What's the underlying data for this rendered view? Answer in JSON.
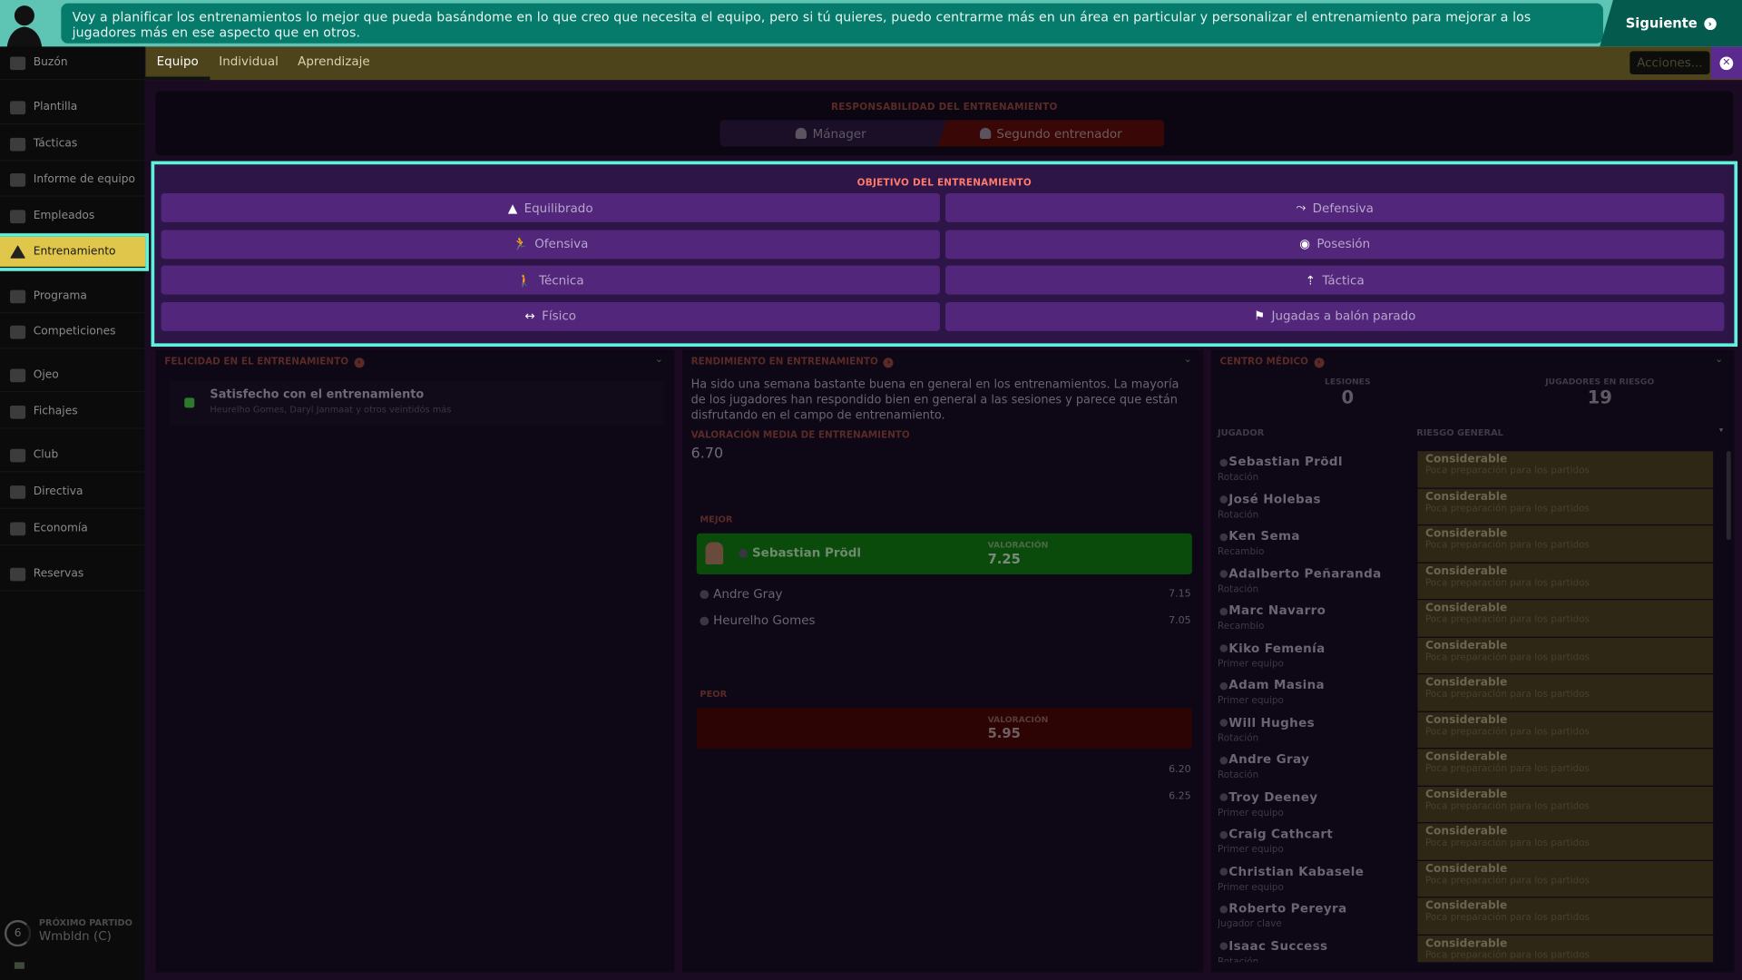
{
  "banner": {
    "message": "Voy a planificar los entrenamientos lo mejor que pueda basándome en lo que creo que necesita el equipo, pero si tú quieres, puedo centrarme más en un área en particular y personalizar el entrenamiento para mejorar a los jugadores más en ese aspecto que en otros.",
    "next_label": "Siguiente"
  },
  "sidebar": {
    "items": [
      {
        "label": "Buzón",
        "icon": "inbox-icon"
      },
      {
        "label": "Plantilla",
        "icon": "squad-icon"
      },
      {
        "label": "Tácticas",
        "icon": "tactics-icon"
      },
      {
        "label": "Informe de equipo",
        "icon": "clipboard-icon"
      },
      {
        "label": "Empleados",
        "icon": "staff-icon"
      },
      {
        "label": "Entrenamiento",
        "icon": "cone-icon",
        "active": true
      },
      {
        "label": "Programa",
        "icon": "calendar-icon"
      },
      {
        "label": "Competiciones",
        "icon": "trophy-icon"
      },
      {
        "label": "Ojeo",
        "icon": "search-icon"
      },
      {
        "label": "Fichajes",
        "icon": "transfer-icon"
      },
      {
        "label": "Club",
        "icon": "shield-icon"
      },
      {
        "label": "Directiva",
        "icon": "briefcase-icon"
      },
      {
        "label": "Economía",
        "icon": "money-icon"
      },
      {
        "label": "Reservas",
        "icon": "reserves-icon"
      }
    ],
    "next_match": {
      "label": "PRÓXIMO PARTIDO",
      "value": "Wmbldn (C)",
      "days": "6"
    }
  },
  "tabs": [
    "Equipo",
    "Individual",
    "Aprendizaje"
  ],
  "actions_label": "Acciones...",
  "responsibility": {
    "title": "RESPONSABILIDAD DEL ENTRENAMIENTO",
    "options": [
      "Mánager",
      "Segundo entrenador"
    ],
    "selected": "Segundo entrenador"
  },
  "objective": {
    "title": "OBJETIVO DEL ENTRENAMIENTO",
    "options": [
      {
        "label": "Equilibrado",
        "glyph": "▲"
      },
      {
        "label": "Defensiva",
        "glyph": "⤳"
      },
      {
        "label": "Ofensiva",
        "glyph": "🏃"
      },
      {
        "label": "Posesión",
        "glyph": "◉"
      },
      {
        "label": "Técnica",
        "glyph": "🚶"
      },
      {
        "label": "Táctica",
        "glyph": "⇡"
      },
      {
        "label": "Físico",
        "glyph": "↔"
      },
      {
        "label": "Jugadas a balón parado",
        "glyph": "⚑"
      }
    ]
  },
  "happiness": {
    "title": "FELICIDAD EN EL ENTRENAMIENTO",
    "status": "Satisfecho con el entrenamiento",
    "detail": "Heurelho Gomes, Daryl Janmaat y otros veintidós más"
  },
  "performance": {
    "title": "RENDIMIENTO EN ENTRENAMIENTO",
    "description": "Ha sido una semana bastante buena en general en los entrenamientos. La mayoría de los jugadores han respondido bien en general a las sesiones y parece que están disfrutando en el campo de entrenamiento.",
    "avg_label": "VALORACIÓN MEDIA DE ENTRENAMIENTO",
    "avg_value": "6.70",
    "best_label": "MEJOR",
    "worst_label": "PEOR",
    "rating_label": "VALORACIÓN",
    "best": {
      "name": "Sebastian Prödl",
      "rating": "7.25"
    },
    "best_others": [
      {
        "name": "Andre Gray",
        "rating": "7.15"
      },
      {
        "name": "Heurelho Gomes",
        "rating": "7.05"
      }
    ],
    "worst": {
      "name": "",
      "rating": "5.95"
    },
    "worst_others": [
      {
        "name": "",
        "rating": "6.20"
      },
      {
        "name": "",
        "rating": "6.25"
      }
    ]
  },
  "medical": {
    "title": "CENTRO MÉDICO",
    "injuries_label": "LESIONES",
    "injuries": "0",
    "at_risk_label": "JUGADORES EN RIESGO",
    "at_risk": "19",
    "col_player": "JUGADOR",
    "col_risk": "RIESGO GENERAL",
    "players": [
      {
        "name": "Sebastian Prödl",
        "role": "Rotación",
        "risk": "Considerable",
        "reason": "Poca preparación para los partidos"
      },
      {
        "name": "José Holebas",
        "role": "Rotación",
        "risk": "Considerable",
        "reason": "Poca preparación para los partidos"
      },
      {
        "name": "Ken Sema",
        "role": "Recambio",
        "risk": "Considerable",
        "reason": "Poca preparación para los partidos"
      },
      {
        "name": "Adalberto Peñaranda",
        "role": "Rotación",
        "risk": "Considerable",
        "reason": "Poca preparación para los partidos"
      },
      {
        "name": "Marc Navarro",
        "role": "Recambio",
        "risk": "Considerable",
        "reason": "Poca preparación para los partidos"
      },
      {
        "name": "Kiko Femenía",
        "role": "Primer equipo",
        "risk": "Considerable",
        "reason": "Poca preparación para los partidos"
      },
      {
        "name": "Adam Masina",
        "role": "Primer equipo",
        "risk": "Considerable",
        "reason": "Poca preparación para los partidos"
      },
      {
        "name": "Will Hughes",
        "role": "Rotación",
        "risk": "Considerable",
        "reason": "Poca preparación para los partidos"
      },
      {
        "name": "Andre Gray",
        "role": "Rotación",
        "risk": "Considerable",
        "reason": "Poca preparación para los partidos"
      },
      {
        "name": "Troy Deeney",
        "role": "Primer equipo",
        "risk": "Considerable",
        "reason": "Poca preparación para los partidos"
      },
      {
        "name": "Craig Cathcart",
        "role": "Primer equipo",
        "risk": "Considerable",
        "reason": "Poca preparación para los partidos"
      },
      {
        "name": "Christian Kabasele",
        "role": "Primer equipo",
        "risk": "Considerable",
        "reason": "Poca preparación para los partidos"
      },
      {
        "name": "Roberto Pereyra",
        "role": "Jugador clave",
        "risk": "Considerable",
        "reason": "Poca preparación para los partidos"
      },
      {
        "name": "Isaac Success",
        "role": "Rotación",
        "risk": "Considerable",
        "reason": "Poca preparación para los partidos"
      }
    ]
  },
  "colors": {
    "accent_teal": "#5ef2dc",
    "banner": "#067a6b",
    "active_nav": "#e0c64a",
    "tabbar": "#4e441b",
    "objective_button": "#52267a",
    "best": "#0a4a0a",
    "worst": "#2d0404",
    "risk": "#2e2716"
  }
}
